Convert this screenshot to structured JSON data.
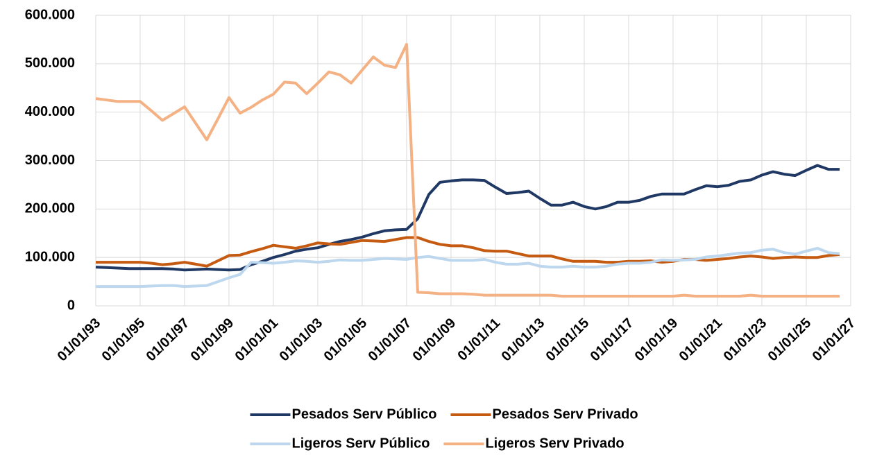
{
  "chart_data": {
    "type": "line",
    "x": [
      1993,
      1993.5,
      1994,
      1994.5,
      1995,
      1995.5,
      1996,
      1996.5,
      1997,
      1997.5,
      1998,
      1998.5,
      1999,
      1999.5,
      2000,
      2000.5,
      2001,
      2001.5,
      2002,
      2002.5,
      2003,
      2003.5,
      2004,
      2004.5,
      2005,
      2005.5,
      2006,
      2006.5,
      2007,
      2007.5,
      2008,
      2008.5,
      2009,
      2009.5,
      2010,
      2010.5,
      2011,
      2011.5,
      2012,
      2012.5,
      2013,
      2013.5,
      2014,
      2014.5,
      2015,
      2015.5,
      2016,
      2016.5,
      2017,
      2017.5,
      2018,
      2018.5,
      2019,
      2019.5,
      2020,
      2020.5,
      2021,
      2021.5,
      2022,
      2022.5,
      2023,
      2023.5,
      2024,
      2024.5,
      2025,
      2025.5,
      2026,
      2026.5
    ],
    "series": [
      {
        "name": "Pesados Serv Público",
        "color": "#1f3864",
        "values": [
          80000,
          79000,
          78000,
          77000,
          77000,
          77000,
          77000,
          76000,
          74000,
          75000,
          76000,
          75000,
          74000,
          75000,
          85000,
          92000,
          100000,
          106000,
          113000,
          117000,
          120000,
          127000,
          133000,
          137000,
          142000,
          149000,
          155000,
          157000,
          158000,
          180000,
          230000,
          255000,
          258000,
          260000,
          260000,
          259000,
          245000,
          232000,
          234000,
          237000,
          222000,
          208000,
          208000,
          214000,
          205000,
          200000,
          205000,
          214000,
          214000,
          218000,
          226000,
          231000,
          231000,
          231000,
          240000,
          248000,
          246000,
          249000,
          257000,
          260000,
          270000,
          277000,
          272000,
          269000,
          280000,
          290000,
          282000,
          282000
        ]
      },
      {
        "name": "Pesados Serv Privado",
        "color": "#c55a11",
        "values": [
          90000,
          90000,
          90000,
          90000,
          90000,
          88000,
          85000,
          87000,
          90000,
          86000,
          82000,
          93000,
          104000,
          105000,
          112000,
          118000,
          125000,
          122000,
          119000,
          124000,
          130000,
          128000,
          127000,
          131000,
          135000,
          134000,
          133000,
          137000,
          141000,
          141000,
          133000,
          127000,
          124000,
          124000,
          120000,
          114000,
          113000,
          113000,
          108000,
          103000,
          103000,
          103000,
          97000,
          92000,
          92000,
          92000,
          90000,
          90000,
          92000,
          92000,
          93000,
          90000,
          92000,
          96000,
          96000,
          94000,
          96000,
          98000,
          101000,
          103000,
          101000,
          98000,
          100000,
          101000,
          100000,
          100000,
          104000,
          106000
        ]
      },
      {
        "name": "Ligeros Serv Público",
        "color": "#bdd7ee",
        "values": [
          40000,
          40000,
          40000,
          40000,
          40000,
          41000,
          42000,
          42000,
          40000,
          41000,
          42000,
          50000,
          58000,
          65000,
          90000,
          89000,
          88000,
          90000,
          93000,
          92000,
          90000,
          92000,
          95000,
          94000,
          94000,
          96000,
          98000,
          97000,
          96000,
          100000,
          102000,
          98000,
          94000,
          94000,
          94000,
          96000,
          90000,
          86000,
          86000,
          88000,
          82000,
          80000,
          80000,
          82000,
          80000,
          80000,
          82000,
          86000,
          88000,
          88000,
          90000,
          95000,
          94000,
          95000,
          96000,
          101000,
          103000,
          106000,
          109000,
          110000,
          115000,
          117000,
          110000,
          107000,
          113000,
          119000,
          110000,
          108000
        ]
      },
      {
        "name": "Ligeros Serv Privado",
        "color": "#f4b183",
        "values": [
          428000,
          425000,
          422000,
          422000,
          422000,
          403000,
          383000,
          397000,
          411000,
          377000,
          343000,
          386000,
          430000,
          398000,
          410000,
          425000,
          437000,
          462000,
          460000,
          438000,
          460000,
          483000,
          477000,
          460000,
          487000,
          514000,
          497000,
          492000,
          540000,
          28000,
          27000,
          25000,
          25000,
          25000,
          24000,
          22000,
          22000,
          22000,
          22000,
          22000,
          22000,
          22000,
          20000,
          20000,
          20000,
          20000,
          20000,
          20000,
          20000,
          20000,
          20000,
          20000,
          20000,
          22000,
          20000,
          20000,
          20000,
          20000,
          20000,
          22000,
          20000,
          20000,
          20000,
          20000,
          20000,
          20000,
          20000,
          20000
        ]
      }
    ],
    "xlim": [
      1993,
      2027
    ],
    "xticks": [
      {
        "value": 1993,
        "label": "01/01/93"
      },
      {
        "value": 1995,
        "label": "01/01/95"
      },
      {
        "value": 1997,
        "label": "01/01/97"
      },
      {
        "value": 1999,
        "label": "01/01/99"
      },
      {
        "value": 2001,
        "label": "01/01/01"
      },
      {
        "value": 2003,
        "label": "01/01/03"
      },
      {
        "value": 2005,
        "label": "01/01/05"
      },
      {
        "value": 2007,
        "label": "01/01/07"
      },
      {
        "value": 2009,
        "label": "01/01/09"
      },
      {
        "value": 2011,
        "label": "01/01/11"
      },
      {
        "value": 2013,
        "label": "01/01/13"
      },
      {
        "value": 2015,
        "label": "01/01/15"
      },
      {
        "value": 2017,
        "label": "01/01/17"
      },
      {
        "value": 2019,
        "label": "01/01/19"
      },
      {
        "value": 2021,
        "label": "01/01/21"
      },
      {
        "value": 2023,
        "label": "01/01/23"
      },
      {
        "value": 2025,
        "label": "01/01/25"
      },
      {
        "value": 2027,
        "label": "01/01/27"
      }
    ],
    "ylim": [
      0,
      600000
    ],
    "yticks": [
      0,
      {
        "value": 100000,
        "label": "100.000"
      },
      {
        "value": 200000,
        "label": "200.000"
      },
      {
        "value": 300000,
        "label": "300.000"
      },
      {
        "value": 400000,
        "label": "400.000"
      },
      {
        "value": 500000,
        "label": "500.000"
      },
      {
        "value": 600000,
        "label": "600.000"
      }
    ],
    "grid": true,
    "legend": "bottom"
  }
}
